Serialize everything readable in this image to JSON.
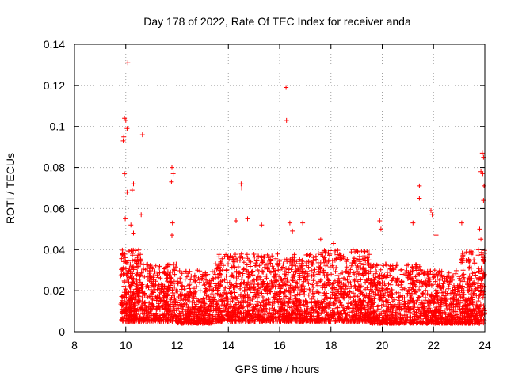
{
  "chart_data": {
    "type": "scatter",
    "title": "Day 178 of 2022, Rate Of TEC Index for receiver anda",
    "xlabel": "GPS time / hours",
    "ylabel": "ROTI / TECUs",
    "xlim": [
      8,
      24
    ],
    "ylim": [
      0,
      0.14
    ],
    "xticks": [
      8,
      10,
      12,
      14,
      16,
      18,
      20,
      22,
      24
    ],
    "xtick_labels": [
      "8",
      "10",
      "12",
      "14",
      "16",
      "18",
      "20",
      "22",
      "24"
    ],
    "yticks": [
      0,
      0.02,
      0.04,
      0.06,
      0.08,
      0.1,
      0.12,
      0.14
    ],
    "ytick_labels": [
      "0",
      "0.02",
      "0.04",
      "0.06",
      "0.08",
      "0.1",
      "0.12",
      "0.14"
    ],
    "grid": true,
    "marker": "+",
    "color": "#ff0000",
    "series": [
      {
        "name": "ROTI",
        "notable_points": [
          {
            "x": 9.9,
            "y": 0.093
          },
          {
            "x": 9.92,
            "y": 0.095
          },
          {
            "x": 9.95,
            "y": 0.104
          },
          {
            "x": 10.0,
            "y": 0.103
          },
          {
            "x": 10.05,
            "y": 0.099
          },
          {
            "x": 10.08,
            "y": 0.131
          },
          {
            "x": 9.95,
            "y": 0.077
          },
          {
            "x": 10.05,
            "y": 0.068
          },
          {
            "x": 10.3,
            "y": 0.072
          },
          {
            "x": 10.25,
            "y": 0.069
          },
          {
            "x": 10.65,
            "y": 0.096
          },
          {
            "x": 10.6,
            "y": 0.057
          },
          {
            "x": 9.98,
            "y": 0.055
          },
          {
            "x": 10.2,
            "y": 0.052
          },
          {
            "x": 10.3,
            "y": 0.048
          },
          {
            "x": 11.8,
            "y": 0.08
          },
          {
            "x": 11.85,
            "y": 0.077
          },
          {
            "x": 11.78,
            "y": 0.073
          },
          {
            "x": 11.82,
            "y": 0.053
          },
          {
            "x": 11.8,
            "y": 0.047
          },
          {
            "x": 14.5,
            "y": 0.072
          },
          {
            "x": 14.52,
            "y": 0.07
          },
          {
            "x": 14.3,
            "y": 0.054
          },
          {
            "x": 14.75,
            "y": 0.055
          },
          {
            "x": 15.3,
            "y": 0.052
          },
          {
            "x": 16.25,
            "y": 0.119
          },
          {
            "x": 16.27,
            "y": 0.103
          },
          {
            "x": 16.5,
            "y": 0.049
          },
          {
            "x": 16.9,
            "y": 0.053
          },
          {
            "x": 16.4,
            "y": 0.053
          },
          {
            "x": 17.6,
            "y": 0.045
          },
          {
            "x": 18.1,
            "y": 0.043
          },
          {
            "x": 19.9,
            "y": 0.054
          },
          {
            "x": 19.95,
            "y": 0.05
          },
          {
            "x": 21.45,
            "y": 0.071
          },
          {
            "x": 21.45,
            "y": 0.065
          },
          {
            "x": 21.2,
            "y": 0.053
          },
          {
            "x": 21.9,
            "y": 0.059
          },
          {
            "x": 21.95,
            "y": 0.057
          },
          {
            "x": 22.1,
            "y": 0.047
          },
          {
            "x": 23.1,
            "y": 0.053
          },
          {
            "x": 23.8,
            "y": 0.05
          },
          {
            "x": 23.85,
            "y": 0.045
          },
          {
            "x": 23.9,
            "y": 0.087
          },
          {
            "x": 23.95,
            "y": 0.085
          },
          {
            "x": 23.92,
            "y": 0.077
          },
          {
            "x": 23.97,
            "y": 0.071
          },
          {
            "x": 23.95,
            "y": 0.064
          },
          {
            "x": 23.85,
            "y": 0.078
          }
        ],
        "bulk_segments": [
          {
            "x_range": [
              9.8,
              10.6
            ],
            "y_range": [
              0.005,
              0.04
            ],
            "count": 300
          },
          {
            "x_range": [
              10.6,
              12.0
            ],
            "y_range": [
              0.005,
              0.033
            ],
            "count": 380
          },
          {
            "x_range": [
              12.0,
              13.5
            ],
            "y_range": [
              0.004,
              0.03
            ],
            "count": 380
          },
          {
            "x_range": [
              13.5,
              15.5
            ],
            "y_range": [
              0.005,
              0.038
            ],
            "count": 560
          },
          {
            "x_range": [
              15.5,
              17.5
            ],
            "y_range": [
              0.005,
              0.038
            ],
            "count": 560
          },
          {
            "x_range": [
              17.5,
              19.5
            ],
            "y_range": [
              0.005,
              0.04
            ],
            "count": 560
          },
          {
            "x_range": [
              19.5,
              21.5
            ],
            "y_range": [
              0.004,
              0.033
            ],
            "count": 520
          },
          {
            "x_range": [
              21.5,
              23.0
            ],
            "y_range": [
              0.004,
              0.03
            ],
            "count": 420
          },
          {
            "x_range": [
              23.0,
              24.0
            ],
            "y_range": [
              0.004,
              0.04
            ],
            "count": 320
          }
        ]
      }
    ]
  }
}
